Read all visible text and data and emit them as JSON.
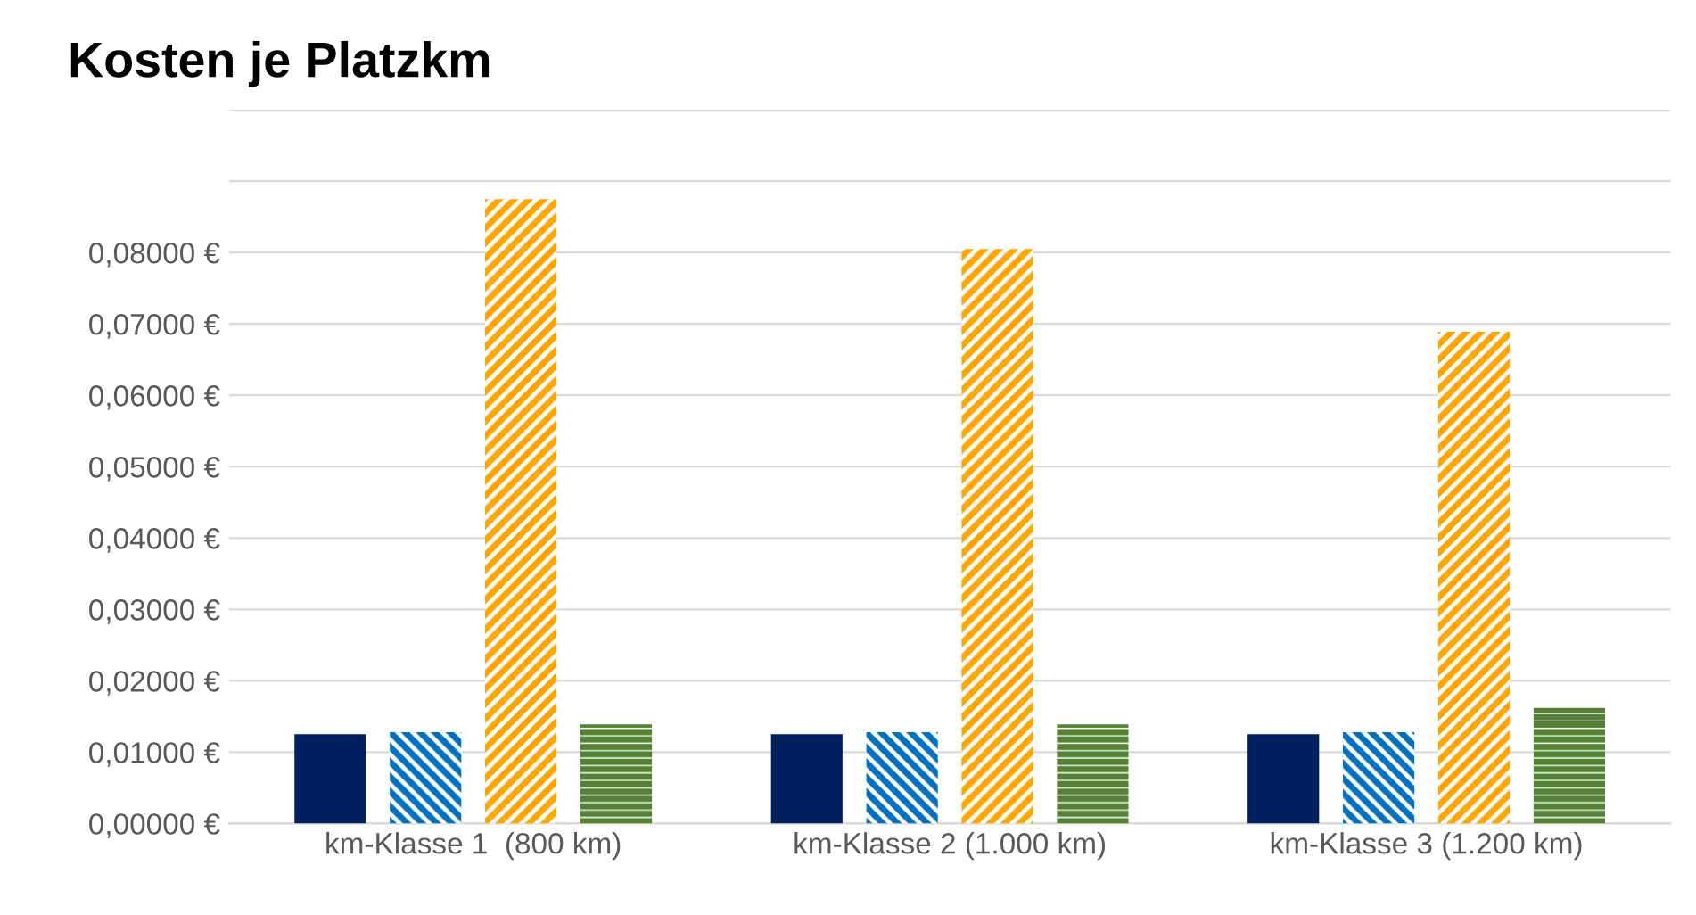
{
  "chart_data": {
    "type": "bar",
    "title": "Kosten je Platzkm",
    "categories": [
      "km-Klasse 1  (800 km)",
      "km-Klasse 2 (1.000 km)",
      "km-Klasse 3 (1.200 km)"
    ],
    "series": [
      {
        "color": "#002060",
        "values": [
          0.0125,
          0.0125,
          0.0125
        ]
      },
      {
        "color": "#0070c0",
        "values": [
          0.0128,
          0.0128,
          0.0128
        ]
      },
      {
        "color": "#ffa500",
        "values": [
          0.0875,
          0.0805,
          0.0689
        ]
      },
      {
        "color": "#548235",
        "values": [
          0.0139,
          0.0139,
          0.0162
        ]
      }
    ],
    "ylim": [
      0,
      0.1
    ],
    "yticks": [
      {
        "value": 0,
        "label": "0,00000 €"
      },
      {
        "value": 0.01,
        "label": "0,01000 €"
      },
      {
        "value": 0.02,
        "label": "0,02000 €"
      },
      {
        "value": 0.03,
        "label": "0,03000 €"
      },
      {
        "value": 0.04,
        "label": "0,04000 €"
      },
      {
        "value": 0.05,
        "label": "0,05000 €"
      },
      {
        "value": 0.06,
        "label": "0,06000 €"
      },
      {
        "value": 0.07,
        "label": "0,07000 €"
      },
      {
        "value": 0.08,
        "label": "0,08000 €"
      },
      {
        "value": 0.09,
        "label": null
      },
      {
        "value": 0.1,
        "label": null
      }
    ],
    "grid": "y",
    "legend": false
  }
}
